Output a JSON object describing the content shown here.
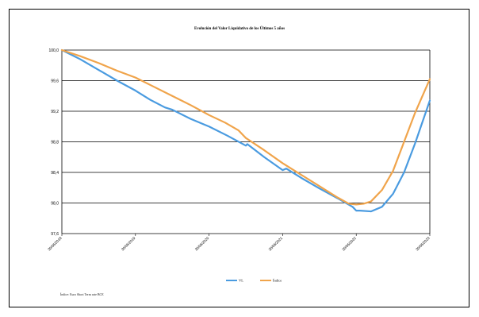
{
  "chart_data": {
    "type": "line",
    "title": "Evolución del Valor Liquidativo de los Últimos 5 años",
    "xlabel": "",
    "ylabel": "",
    "ylim": [
      97.6,
      100.0
    ],
    "yticks": [
      97.6,
      98.0,
      98.4,
      98.8,
      99.2,
      99.6,
      100.0
    ],
    "ytick_labels": [
      "97,6",
      "98,0",
      "98,4",
      "98,8",
      "99,2",
      "99,6",
      "100,0"
    ],
    "x_tick_labels": [
      "30/06/2018",
      "30/06/2019",
      "30/06/2020",
      "30/06/2021",
      "30/06/2022",
      "30/06/2023"
    ],
    "x_tick_positions": [
      0,
      1,
      2,
      3,
      4,
      5
    ],
    "grid": true,
    "legend_position": "bottom",
    "series": [
      {
        "name": "VL",
        "color": "#4a9be0",
        "x": [
          0,
          0.25,
          0.5,
          0.75,
          1.0,
          1.2,
          1.4,
          1.5,
          1.75,
          2.0,
          2.25,
          2.5,
          2.52,
          2.75,
          3.0,
          3.05,
          3.25,
          3.5,
          3.75,
          3.95,
          4.0,
          4.05,
          4.2,
          4.35,
          4.5,
          4.65,
          4.8,
          5.0
        ],
        "y": [
          100.0,
          99.88,
          99.74,
          99.6,
          99.47,
          99.35,
          99.25,
          99.22,
          99.1,
          99.0,
          98.88,
          98.75,
          98.77,
          98.6,
          98.43,
          98.45,
          98.33,
          98.19,
          98.06,
          97.95,
          97.9,
          97.9,
          97.89,
          97.95,
          98.12,
          98.4,
          98.78,
          99.34
        ]
      },
      {
        "name": "Índice",
        "color": "#f0a44b",
        "x": [
          0,
          0.25,
          0.5,
          0.75,
          1.0,
          1.25,
          1.5,
          1.75,
          2.0,
          2.22,
          2.4,
          2.45,
          2.5,
          2.75,
          3.0,
          3.25,
          3.5,
          3.75,
          3.9,
          4.0,
          4.1,
          4.2,
          4.35,
          4.5,
          4.65,
          4.8,
          5.0
        ],
        "y": [
          100.0,
          99.92,
          99.83,
          99.73,
          99.64,
          99.52,
          99.4,
          99.28,
          99.15,
          99.05,
          98.95,
          98.9,
          98.85,
          98.69,
          98.52,
          98.37,
          98.22,
          98.07,
          97.99,
          97.98,
          97.99,
          98.02,
          98.17,
          98.42,
          98.8,
          99.18,
          99.62
        ]
      }
    ]
  },
  "footnote": "Índice: Euro Short Term rate BCE"
}
